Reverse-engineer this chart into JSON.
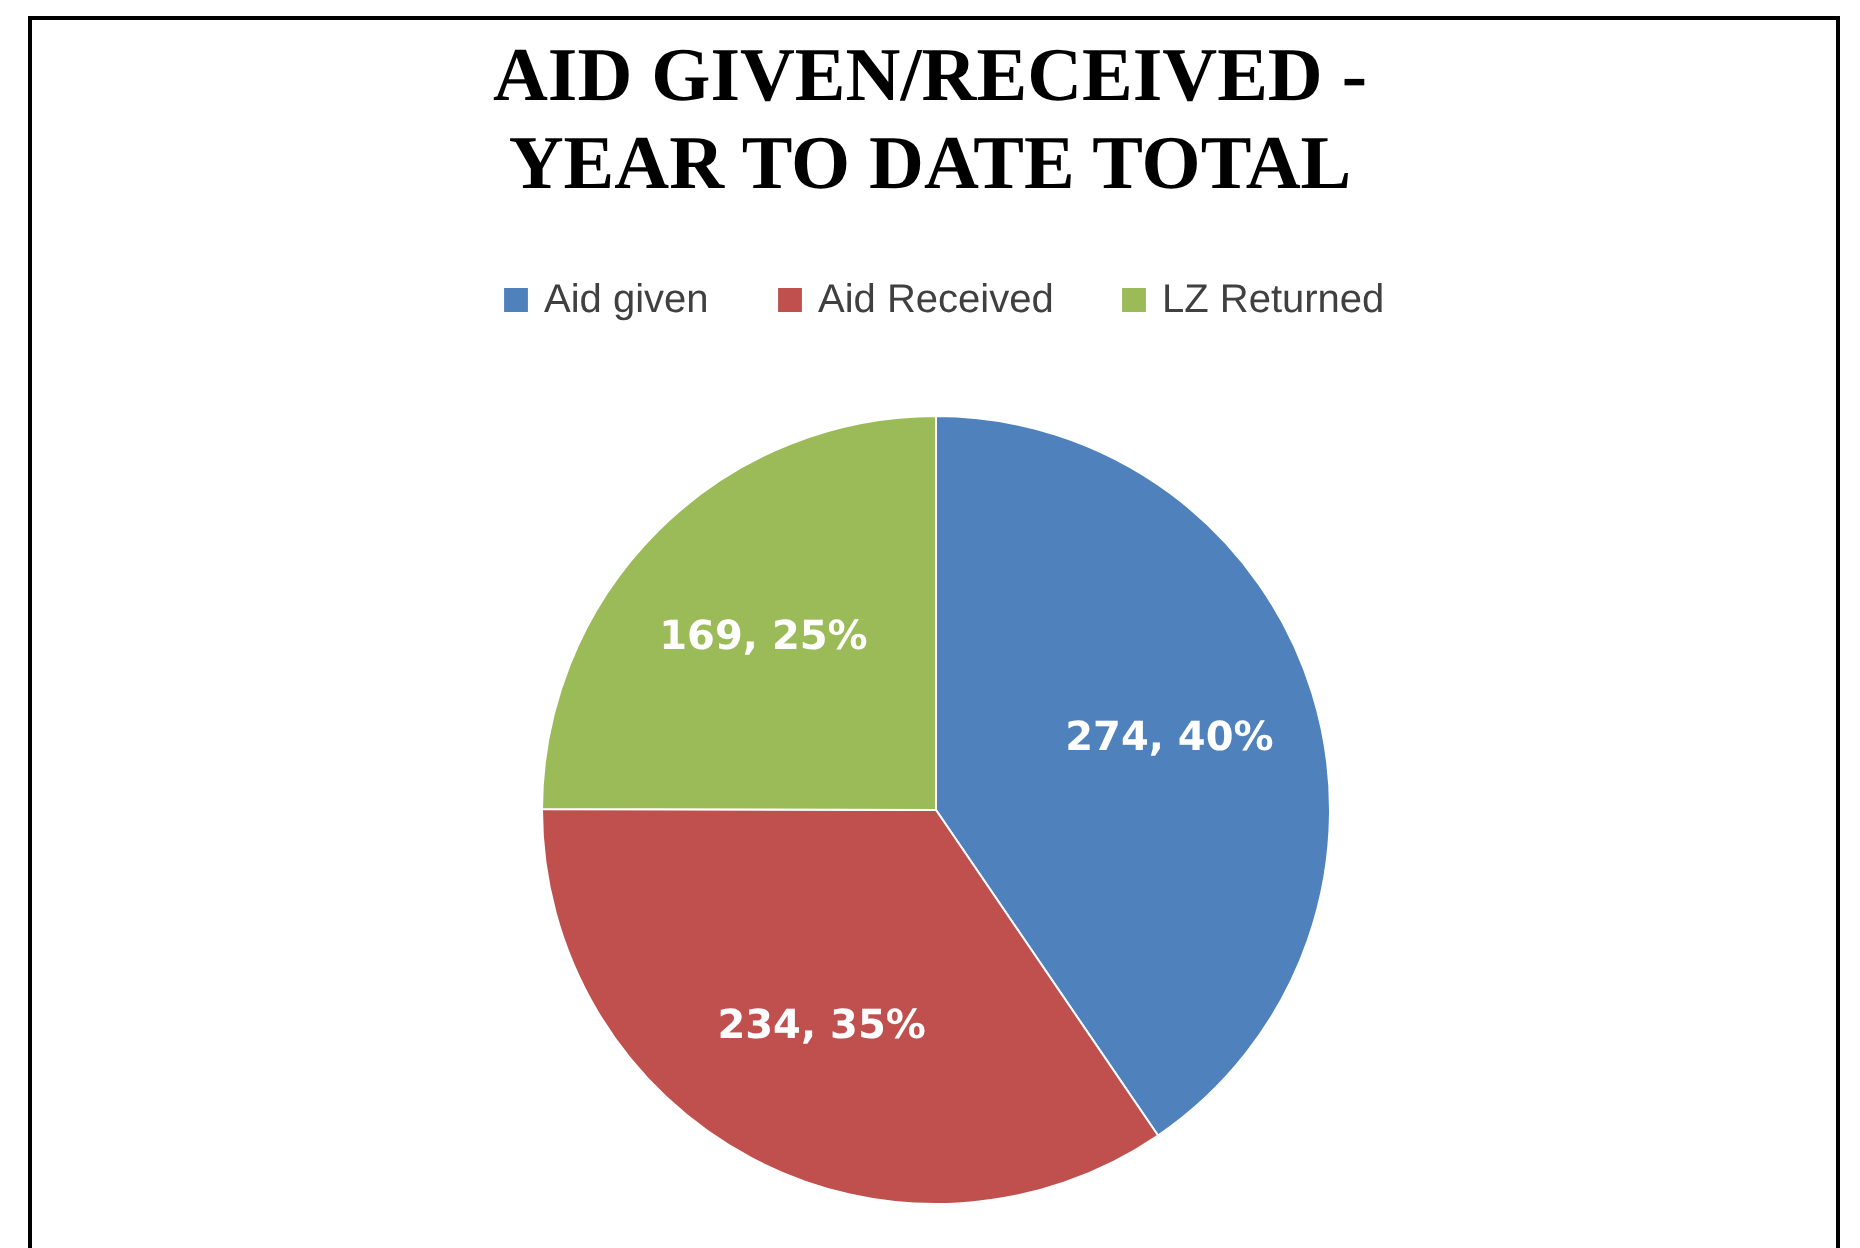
{
  "chart_data": {
    "type": "pie",
    "title": "AID GIVEN/RECEIVED -\nYEAR TO DATE TOTAL",
    "categories": [
      "Aid given",
      "Aid Received",
      "LZ Returned"
    ],
    "values": [
      274,
      234,
      169
    ],
    "colors": [
      "#4f81bd",
      "#c0504d",
      "#9bbb59"
    ],
    "value_labels": [
      "274, 40%",
      "234, 35%",
      "169, 25%"
    ],
    "legend": "top"
  }
}
